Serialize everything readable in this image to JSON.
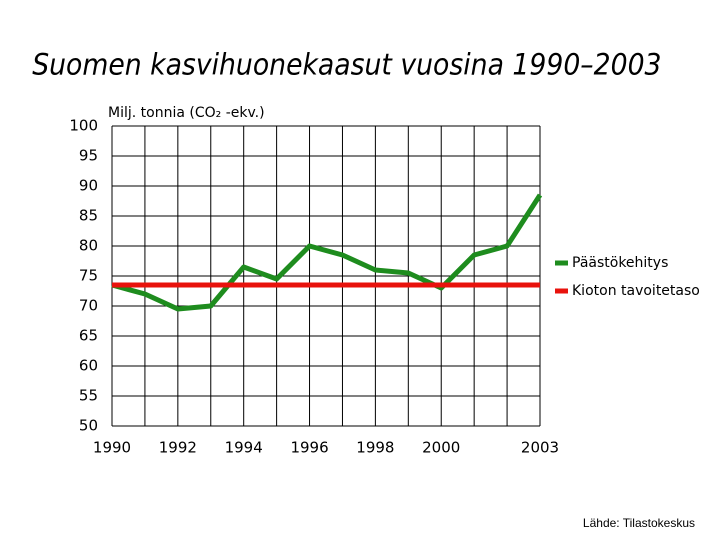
{
  "chart_data": {
    "type": "line",
    "title": "Suomen kasvihuonekaasut vuosina 1990–2003",
    "y_label": "Milj. tonnia (CO₂ -ekv.)",
    "source": "Lähde: Tilastokeskus",
    "x": [
      1990,
      1991,
      1992,
      1993,
      1994,
      1995,
      1996,
      1997,
      1998,
      1999,
      2000,
      2001,
      2002,
      2003
    ],
    "series": [
      {
        "name": "Päästökehitys",
        "color": "#1e8c1e",
        "values": [
          73.5,
          72,
          69.5,
          70,
          76.5,
          74.5,
          80,
          78.5,
          76,
          75.5,
          73,
          78.5,
          80,
          88.5
        ]
      },
      {
        "name": "Kioton tavoitetaso",
        "color": "#e8120c",
        "values": [
          73.5,
          73.5,
          73.5,
          73.5,
          73.5,
          73.5,
          73.5,
          73.5,
          73.5,
          73.5,
          73.5,
          73.5,
          73.5,
          73.5
        ]
      }
    ],
    "xlim": [
      1990,
      2003
    ],
    "xticks": [
      1990,
      1992,
      1994,
      1996,
      1998,
      2000,
      2003
    ],
    "ylim": [
      50,
      100
    ],
    "yticks": [
      50,
      55,
      60,
      65,
      70,
      75,
      80,
      85,
      90,
      95,
      100
    ],
    "grid": true,
    "legend": "right"
  }
}
